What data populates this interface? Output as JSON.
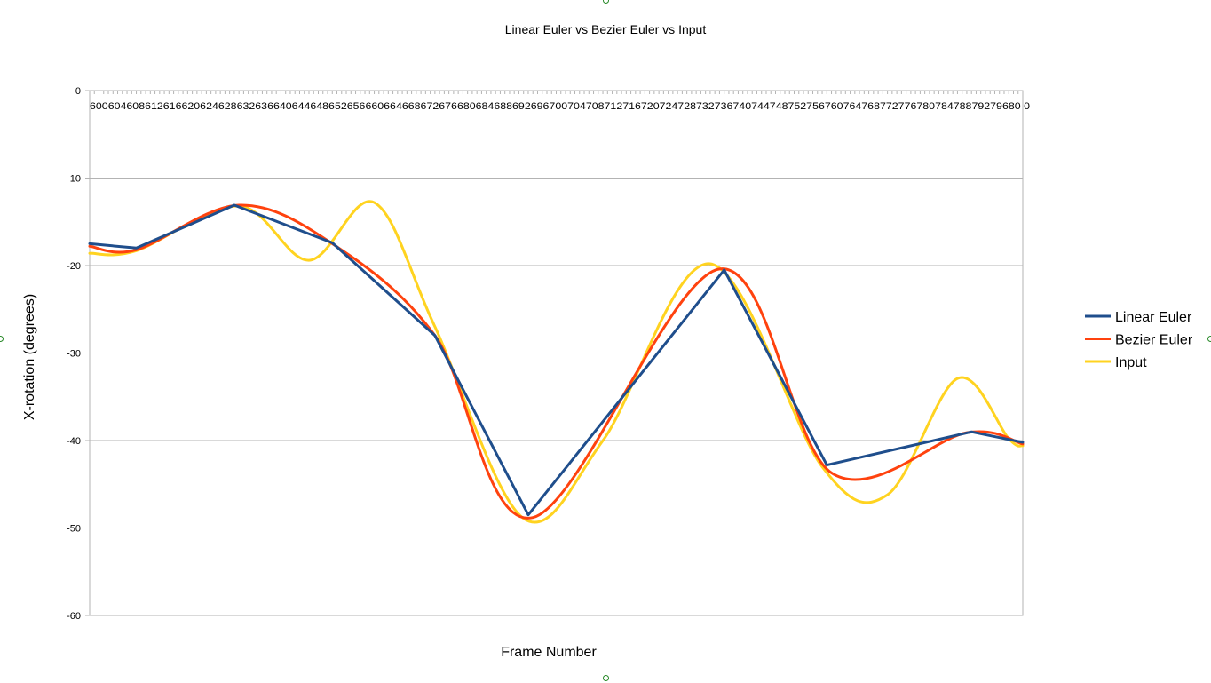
{
  "chart_data": {
    "type": "line",
    "title": "Linear Euler vs Bezier Euler vs Input",
    "xlabel": "Frame Number",
    "ylabel": "X-rotation (degrees)",
    "ylim": [
      -60,
      0
    ],
    "yticks": [
      0,
      -10,
      -20,
      -30,
      -40,
      -50,
      -60
    ],
    "xlim": [
      600,
      800
    ],
    "x_tick_text": "60060460861261662062462863263664064464865265666066466867267668068468869269670070470871271672072472873273674074474875275676076476877277678078478879279680 0",
    "grid": "horizontal",
    "legend_position": "right",
    "series": [
      {
        "name": "Linear Euler",
        "color": "#1f4e8c",
        "smooth": false,
        "x": [
          600,
          610,
          631,
          652,
          674,
          694,
          736,
          758,
          789,
          800
        ],
        "y": [
          -17.5,
          -18.0,
          -13.1,
          -17.4,
          -28.0,
          -48.5,
          -20.5,
          -42.8,
          -39.0,
          -40.2
        ]
      },
      {
        "name": "Bezier Euler",
        "color": "#ff420e",
        "smooth": true,
        "x": [
          600,
          610,
          632,
          652,
          674,
          695,
          735,
          759,
          788,
          800
        ],
        "y": [
          -17.8,
          -18.2,
          -13.1,
          -17.5,
          -28.0,
          -48.8,
          -20.4,
          -43.7,
          -39.1,
          -40.4
        ]
      },
      {
        "name": "Input",
        "color": "#ffd320",
        "smooth": true,
        "x": [
          600,
          610,
          632,
          647,
          661,
          674,
          693,
          710,
          733,
          757,
          771,
          786,
          797,
          800
        ],
        "y": [
          -18.6,
          -18.3,
          -13.2,
          -19.4,
          -12.8,
          -27.0,
          -48.9,
          -40.0,
          -19.8,
          -43.0,
          -46.2,
          -32.9,
          -39.8,
          -40.6
        ]
      }
    ]
  }
}
